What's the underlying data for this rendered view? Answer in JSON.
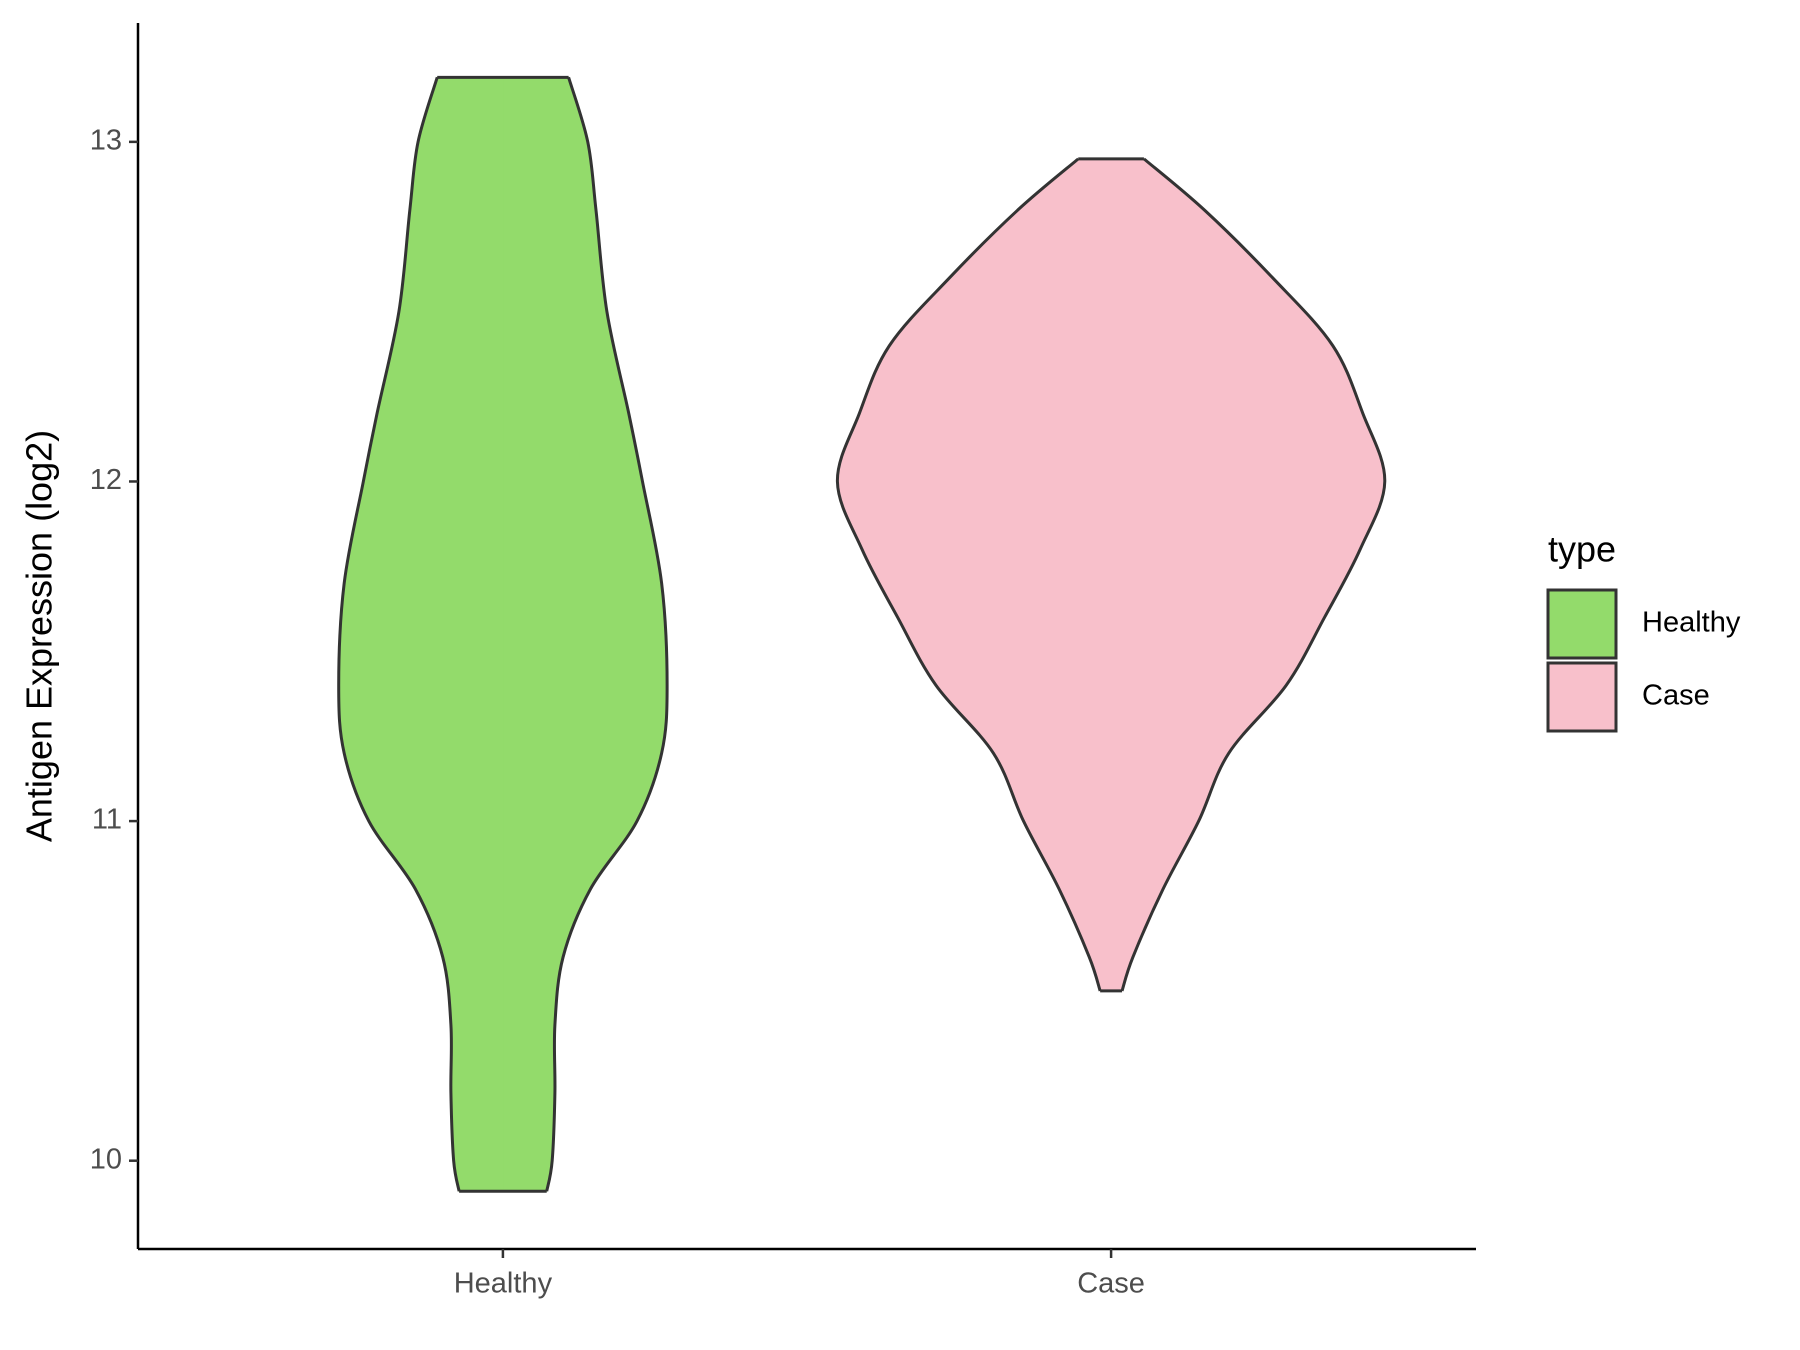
{
  "chart_data": {
    "type": "violin",
    "y_label": "Antigen Expression (log2)",
    "categories": [
      "Healthy",
      "Case"
    ],
    "legend_title": "type",
    "legend_position": "right",
    "ylim": [
      9.74,
      13.35
    ],
    "yticks": [
      10,
      11,
      12,
      13
    ],
    "series": [
      {
        "name": "Healthy",
        "color": "#93db6b",
        "y": [
          13.19,
          13.0,
          12.8,
          12.5,
          12.2,
          12.0,
          11.7,
          11.4,
          11.2,
          11.0,
          10.8,
          10.6,
          10.4,
          10.2,
          10.0,
          9.91
        ],
        "width": [
          0.24,
          0.31,
          0.34,
          0.38,
          0.46,
          0.51,
          0.58,
          0.6,
          0.58,
          0.49,
          0.32,
          0.22,
          0.19,
          0.19,
          0.18,
          0.16
        ]
      },
      {
        "name": "Case",
        "color": "#f8c0cb",
        "y": [
          12.95,
          12.8,
          12.6,
          12.4,
          12.2,
          12.0,
          11.8,
          11.6,
          11.4,
          11.2,
          11.0,
          10.8,
          10.6,
          10.5
        ],
        "width": [
          0.12,
          0.34,
          0.59,
          0.81,
          0.92,
          1,
          0.91,
          0.78,
          0.64,
          0.43,
          0.32,
          0.19,
          0.08,
          0.04
        ]
      }
    ]
  }
}
